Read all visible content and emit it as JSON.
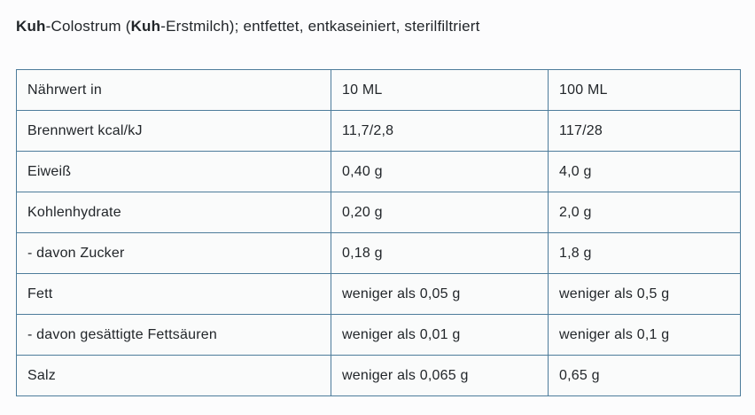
{
  "header": {
    "title_bold_1": "Kuh",
    "title_regular_1": "-Colostrum (",
    "title_bold_2": "Kuh",
    "title_regular_2": "-Erstmilch); entfettet, entkaseiniert, sterilfiltriert"
  },
  "table": {
    "columns": [
      "Nährwert in",
      "10 ML",
      "100 ML"
    ],
    "rows": [
      [
        "Brennwert kcal/kJ",
        "11,7/2,8",
        "117/28"
      ],
      [
        "Eiweiß",
        "0,40 g",
        "4,0 g"
      ],
      [
        "Kohlenhydrate",
        "0,20 g",
        "2,0 g"
      ],
      [
        "- davon Zucker",
        "0,18 g",
        "1,8 g"
      ],
      [
        "Fett",
        "weniger als 0,05 g",
        "weniger als 0,5 g"
      ],
      [
        "- davon gesättigte Fettsäuren",
        "weniger als 0,01 g",
        "weniger als 0,1 g"
      ],
      [
        "Salz",
        "weniger als 0,065 g",
        "0,65 g"
      ]
    ]
  },
  "colors": {
    "table_border": "#4d7c9b",
    "text": "#22262a",
    "cell_background": "#fafbfb",
    "page_background": "#fcfcfd"
  }
}
